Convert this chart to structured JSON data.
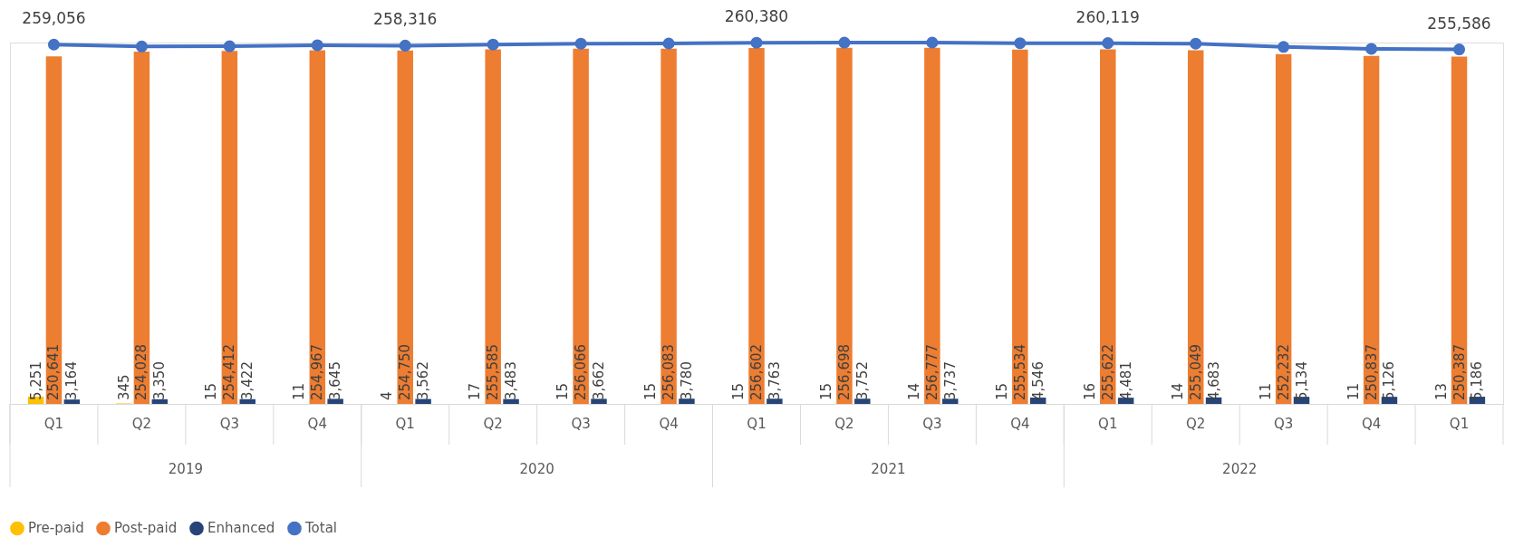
{
  "chart_data": {
    "type": "bar",
    "categories": [
      "Q1",
      "Q2",
      "Q3",
      "Q4",
      "Q1",
      "Q2",
      "Q3",
      "Q4",
      "Q1",
      "Q2",
      "Q3",
      "Q4",
      "Q1",
      "Q2",
      "Q3",
      "Q4",
      "Q1"
    ],
    "annotations": [
      "2019",
      "2020",
      "2021",
      "2022"
    ],
    "legend": "bottom",
    "grid": false,
    "series": [
      {
        "name": "Pre-paid",
        "color": "#ffc000",
        "values": [
          5251,
          345,
          15,
          11,
          4,
          17,
          15,
          15,
          15,
          15,
          14,
          15,
          16,
          14,
          11,
          11,
          13
        ],
        "value_labels": [
          "5,251",
          "345",
          "15",
          "11",
          "4",
          "17",
          "15",
          "15",
          "15",
          "15",
          "14",
          "15",
          "16",
          "14",
          "11",
          "11",
          "13"
        ]
      },
      {
        "name": "Post-paid",
        "color": "#ed7d31",
        "values": [
          250641,
          254028,
          254412,
          254967,
          254750,
          255585,
          256066,
          256083,
          256602,
          256698,
          256777,
          255534,
          255622,
          255049,
          252232,
          250837,
          250387
        ],
        "value_labels": [
          "250,641",
          "254,028",
          "254,412",
          "254,967",
          "254,750",
          "255,585",
          "256,066",
          "256,083",
          "256,602",
          "256,698",
          "256,777",
          "255,534",
          "255,622",
          "255,049",
          "252,232",
          "250,837",
          "250,387"
        ]
      },
      {
        "name": "Enhanced",
        "color": "#264478",
        "values": [
          3164,
          3350,
          3422,
          3645,
          3562,
          3483,
          3662,
          3780,
          3763,
          3752,
          3737,
          4546,
          4481,
          4683,
          5134,
          5126,
          5186
        ],
        "value_labels": [
          "3,164",
          "3,350",
          "3,422",
          "3,645",
          "3,562",
          "3,483",
          "3,662",
          "3,780",
          "3,763",
          "3,752",
          "3,737",
          "4,546",
          "4,481",
          "4,683",
          "5,134",
          "5,126",
          "5,186"
        ]
      },
      {
        "name": "Total",
        "type": "line",
        "marker": "circle",
        "color": "#4472c4",
        "values": [
          259056,
          257723,
          257849,
          258623,
          258316,
          259085,
          259743,
          259878,
          260380,
          260465,
          260528,
          260095,
          260119,
          259746,
          257377,
          255974,
          255586
        ],
        "value_labels": [
          "259,056",
          null,
          null,
          null,
          "258,316",
          null,
          null,
          null,
          "260,380",
          null,
          null,
          null,
          "260,119",
          null,
          null,
          null,
          "255,586"
        ]
      }
    ]
  }
}
